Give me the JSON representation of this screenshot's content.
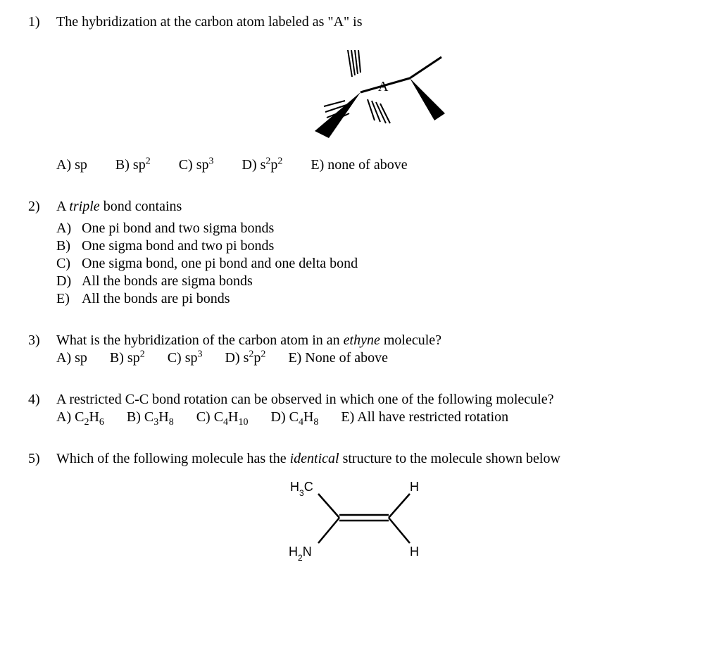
{
  "q1": {
    "num": "1)",
    "text_parts": [
      "The hybridization at the carbon atom labeled as \"A\" is"
    ],
    "figure_label": "A",
    "options": {
      "A": {
        "letter": "A)",
        "val": "sp"
      },
      "B": {
        "letter": "B)",
        "val_html": "sp<sup>2</sup>"
      },
      "C": {
        "letter": "C)",
        "val_html": "sp<sup>3</sup>"
      },
      "D": {
        "letter": "D)",
        "val_html": "s<sup>2</sup>p<sup>2</sup>"
      },
      "E": {
        "letter": "E)",
        "val": "none of above"
      }
    }
  },
  "q2": {
    "num": "2)",
    "text_prefix": "A ",
    "text_italic": "triple",
    "text_suffix": " bond contains",
    "options": {
      "A": {
        "letter": "A)",
        "val": "One pi bond and two sigma bonds"
      },
      "B": {
        "letter": "B)",
        "val": "One sigma bond and two pi bonds"
      },
      "C": {
        "letter": "C)",
        "val": "One sigma bond, one pi bond and one delta bond"
      },
      "D": {
        "letter": "D)",
        "val": "All the bonds are sigma bonds"
      },
      "E": {
        "letter": "E)",
        "val": "All the bonds are pi bonds"
      }
    }
  },
  "q3": {
    "num": "3)",
    "text_prefix": "What is the hybridization of the carbon atom in an ",
    "text_italic": "ethyne",
    "text_suffix": " molecule?",
    "options": {
      "A": {
        "letter": "A)",
        "val": "sp"
      },
      "B": {
        "letter": "B)",
        "val_html": "sp<sup>2</sup>"
      },
      "C": {
        "letter": "C)",
        "val_html": "sp<sup>3</sup>"
      },
      "D": {
        "letter": "D)",
        "val_html": "s<sup>2</sup>p<sup>2</sup>"
      },
      "E": {
        "letter": "E)",
        "val": "None of above"
      }
    }
  },
  "q4": {
    "num": "4)",
    "text": "A restricted C-C bond rotation can be observed in which one of the following molecule?",
    "options": {
      "A": {
        "letter": "A)",
        "val_html": "C<sub>2</sub>H<sub>6</sub>"
      },
      "B": {
        "letter": "B)",
        "val_html": "C<sub>3</sub>H<sub>8</sub>"
      },
      "C": {
        "letter": "C)",
        "val_html": "C<sub>4</sub>H<sub>10</sub>"
      },
      "D": {
        "letter": "D)",
        "val_html": "C<sub>4</sub>H<sub>8</sub>"
      },
      "E": {
        "letter": "E)",
        "val": "All have restricted rotation"
      }
    }
  },
  "q5": {
    "num": "5)",
    "text_prefix": "Which of the following molecule has the ",
    "text_italic": "identical",
    "text_suffix": " structure to the molecule shown below",
    "figure_labels": {
      "tl": "H3C",
      "tr": "H",
      "bl": "H2N",
      "br": "H"
    }
  },
  "style": {
    "font_family": "Times New Roman",
    "font_size_pt": 15,
    "text_color": "#000000",
    "background_color": "#ffffff"
  }
}
